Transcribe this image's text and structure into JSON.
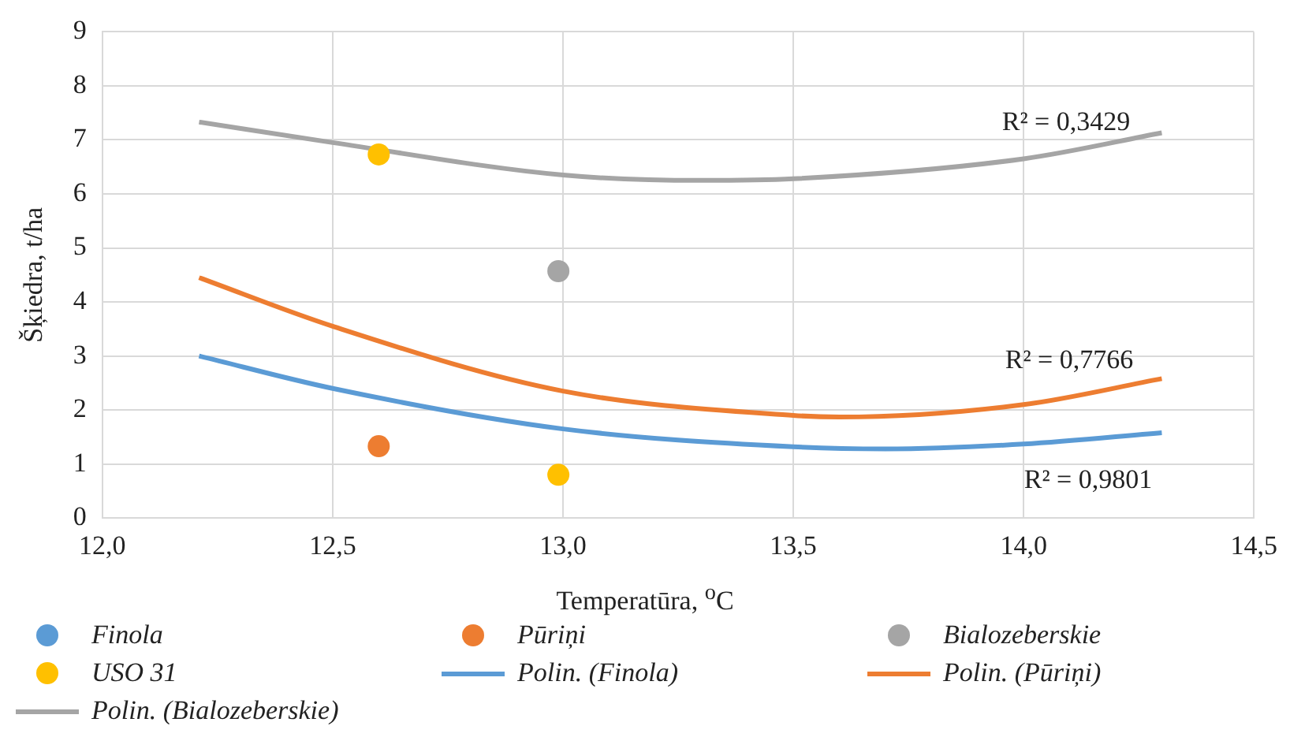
{
  "chart_data": {
    "type": "scatter",
    "xlabel": "Temperatūra, $^{o}$C",
    "ylabel": "Šķiedra, t/ha",
    "xlim": [
      12,
      14.5
    ],
    "xticks": [
      {
        "value": 12,
        "label": "12,0"
      },
      {
        "value": 12.5,
        "label": "12,5"
      },
      {
        "value": 13,
        "label": "13,0"
      },
      {
        "value": 13.5,
        "label": "13,5"
      },
      {
        "value": 14,
        "label": "14,0"
      },
      {
        "value": 14.5,
        "label": "14,5"
      }
    ],
    "ylim": [
      0,
      9
    ],
    "yticks": [
      0,
      1,
      2,
      3,
      4,
      5,
      6,
      7,
      8,
      9
    ],
    "grid": true,
    "legend": "bottom",
    "marker": "circle",
    "series": [
      {
        "name": "Finola",
        "color": "#5b9bd5"
      },
      {
        "name": "Pūriņi",
        "color": "#ed7d31",
        "x": [
          12.6
        ],
        "values": [
          1.33
        ]
      },
      {
        "name": "Bialozeberskie",
        "color": "#a5a5a5",
        "x": [
          12.99
        ],
        "values": [
          4.57
        ]
      },
      {
        "name": "USO 31",
        "color": "#ffc000",
        "x": [
          12.6,
          12.99
        ],
        "values": [
          6.73,
          0.8
        ]
      },
      {
        "name": "Polin. (Finola)",
        "type": "line",
        "marker": "none",
        "color": "#5b9bd5",
        "x": [
          12.21,
          12.5,
          13.0,
          13.5,
          13.7,
          14.0,
          14.3
        ],
        "values": [
          3.0,
          2.4,
          1.65,
          1.32,
          1.28,
          1.37,
          1.58
        ]
      },
      {
        "name": "Polin. (Pūriņi)",
        "type": "line",
        "marker": "none",
        "color": "#ed7d31",
        "x": [
          12.21,
          12.5,
          13.0,
          13.5,
          13.6,
          14.0,
          14.3
        ],
        "values": [
          4.45,
          3.55,
          2.35,
          1.9,
          1.87,
          2.1,
          2.58
        ]
      },
      {
        "name": "Polin. (Bialozeberskie)",
        "type": "line",
        "marker": "none",
        "color": "#a5a5a5",
        "x": [
          12.21,
          12.5,
          13.0,
          13.3,
          13.5,
          14.0,
          14.3
        ],
        "values": [
          7.33,
          6.95,
          6.35,
          6.25,
          6.28,
          6.65,
          7.13
        ]
      }
    ],
    "annotations": [
      "R² = 0,3429",
      "R² = 0,7766",
      "R² = 0,9801"
    ]
  }
}
